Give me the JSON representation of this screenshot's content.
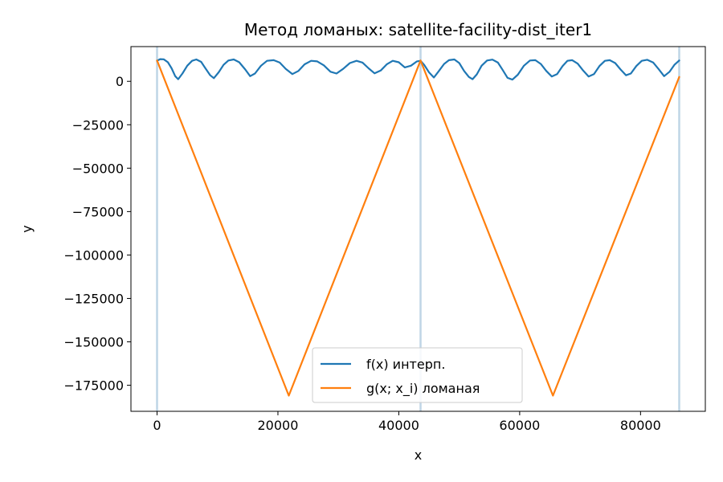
{
  "chart_data": {
    "type": "line",
    "title": "Метод ломаных: satellite-facility-dist_iter1",
    "xlabel": "x",
    "ylabel": "y",
    "xlim": [
      -4320,
      90720
    ],
    "ylim": [
      -190000,
      20000
    ],
    "xticks": [
      0,
      20000,
      40000,
      60000,
      80000
    ],
    "xtick_labels": [
      "0",
      "20000",
      "40000",
      "60000",
      "80000"
    ],
    "yticks": [
      0,
      -25000,
      -50000,
      -75000,
      -100000,
      -125000,
      -150000,
      -175000
    ],
    "ytick_labels": [
      "0",
      "−25000",
      "−50000",
      "−75000",
      "−100000",
      "−125000",
      "−150000",
      "−175000"
    ],
    "grid": false,
    "legend": "lower-center",
    "vlines": {
      "color": "#aac7de",
      "x": [
        0,
        43600,
        86400
      ]
    },
    "series": [
      {
        "name": "f(x) интерп.",
        "color": "#1f77b4",
        "x": [
          0,
          500,
          1100,
          1800,
          2400,
          3000,
          3500,
          4200,
          5000,
          5800,
          6500,
          7300,
          8000,
          8800,
          9400,
          10200,
          11000,
          11800,
          12700,
          13600,
          14600,
          15400,
          16200,
          17200,
          18200,
          19300,
          20300,
          21300,
          22400,
          23400,
          24400,
          25500,
          26500,
          27600,
          28700,
          29700,
          30800,
          31900,
          33000,
          34000,
          35000,
          36000,
          37000,
          38000,
          39000,
          40000,
          41000,
          42000,
          43000,
          43600,
          44200,
          45000,
          45800,
          46600,
          47500,
          48300,
          49200,
          50000,
          50800,
          51600,
          52200,
          52900,
          53700,
          54600,
          55500,
          56400,
          57200,
          58000,
          58800,
          59700,
          60700,
          61700,
          62600,
          63500,
          64400,
          65300,
          66200,
          67100,
          67900,
          68700,
          69600,
          70500,
          71400,
          72300,
          73200,
          74100,
          74900,
          75800,
          76700,
          77600,
          78400,
          79300,
          80200,
          81100,
          82100,
          83000,
          83900,
          84800,
          85600,
          86400
        ],
        "y": [
          11800,
          12800,
          12700,
          11000,
          7500,
          3000,
          1200,
          4500,
          9000,
          11800,
          12600,
          11200,
          7500,
          3500,
          1800,
          5200,
          9500,
          12000,
          12600,
          11000,
          6800,
          3000,
          4500,
          9000,
          11800,
          12200,
          10800,
          7200,
          4200,
          6000,
          9800,
          11800,
          11500,
          9200,
          5500,
          4500,
          7200,
          10500,
          11800,
          10800,
          7500,
          4600,
          6200,
          9800,
          11800,
          11000,
          8000,
          9000,
          11500,
          11800,
          9500,
          5200,
          2200,
          5800,
          10000,
          12200,
          12600,
          10500,
          6000,
          2500,
          1200,
          4000,
          9000,
          12000,
          12500,
          10800,
          6500,
          2000,
          1000,
          3800,
          9000,
          12000,
          12200,
          10000,
          6000,
          2800,
          4200,
          8800,
          11800,
          12200,
          10200,
          6200,
          2800,
          4200,
          8800,
          11800,
          12200,
          10500,
          6800,
          3500,
          4500,
          8800,
          11800,
          12400,
          10800,
          7000,
          3000,
          5500,
          9500,
          12000
        ]
      },
      {
        "name": "g(x; x_i) ломаная",
        "color": "#ff7f0e",
        "x": [
          0,
          21800,
          43600,
          65500,
          86400
        ],
        "y": [
          12000,
          -181000,
          12000,
          -181000,
          2500
        ]
      }
    ]
  }
}
